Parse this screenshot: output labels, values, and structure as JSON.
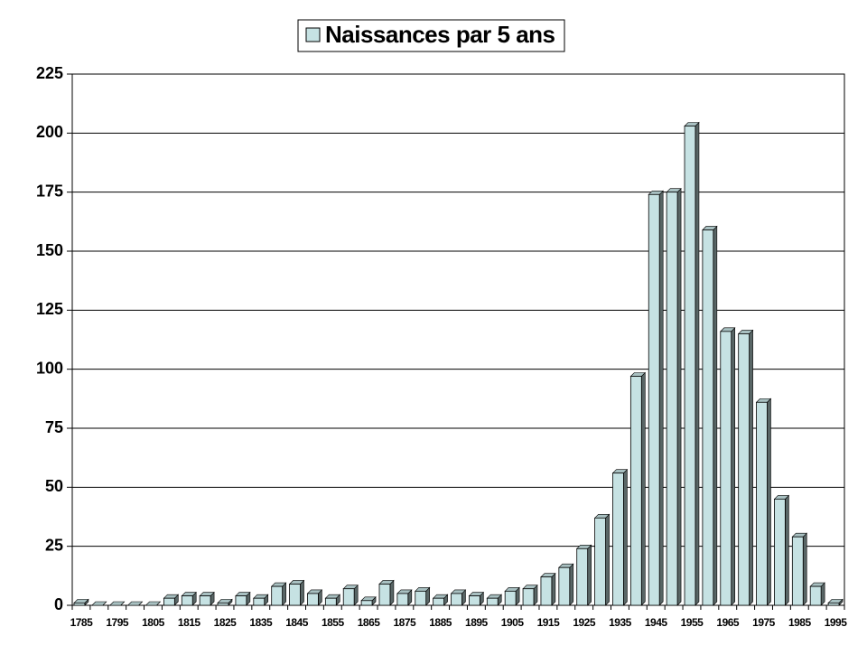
{
  "chart_data": {
    "type": "bar",
    "categories": [
      "1785",
      null,
      "1795",
      null,
      "1805",
      null,
      "1815",
      null,
      "1825",
      null,
      "1835",
      null,
      "1845",
      null,
      "1855",
      null,
      "1865",
      null,
      "1875",
      null,
      "1885",
      null,
      "1895",
      null,
      "1905",
      null,
      "1915",
      null,
      "1925",
      null,
      "1935",
      null,
      "1945",
      null,
      "1955",
      null,
      "1965",
      null,
      "1975",
      null,
      "1985",
      null,
      "1995"
    ],
    "series": [
      {
        "name": "Naissances par 5 ans",
        "color": "#c6e2e3",
        "values": [
          1,
          0,
          0,
          0,
          0,
          3,
          4,
          4,
          1,
          4,
          3,
          8,
          9,
          5,
          3,
          7,
          2,
          9,
          5,
          6,
          3,
          5,
          4,
          3,
          6,
          7,
          12,
          16,
          24,
          37,
          56,
          97,
          174,
          175,
          203,
          159,
          116,
          115,
          86,
          45,
          29,
          8,
          1
        ]
      }
    ],
    "ylim": [
      0,
      225
    ],
    "yticks": [
      0,
      25,
      50,
      75,
      100,
      125,
      150,
      175,
      200,
      225
    ],
    "grid": true,
    "legend": "top"
  }
}
